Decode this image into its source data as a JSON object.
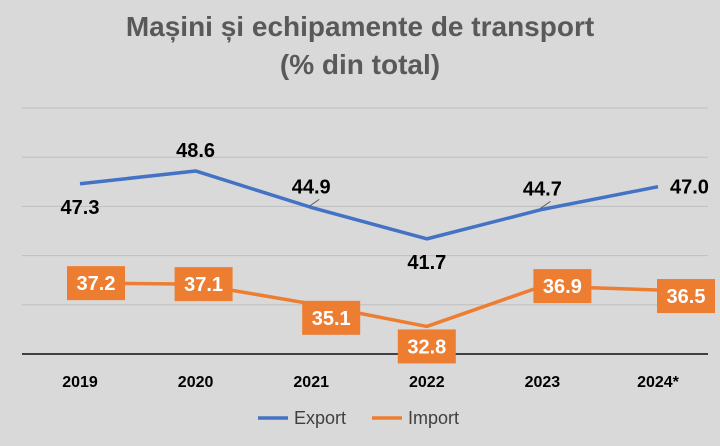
{
  "chart_data": {
    "type": "line",
    "title": "Mașini și echipamente de transport",
    "subtitle": "(% din total)",
    "categories": [
      "2019",
      "2020",
      "2021",
      "2022",
      "2023",
      "2024*"
    ],
    "series": [
      {
        "name": "Export",
        "values": [
          47.3,
          48.6,
          44.9,
          41.7,
          44.7,
          47.0
        ],
        "labels": [
          "47.3",
          "48.6",
          "44.9",
          "41.7",
          "44.7",
          "47.0"
        ],
        "color": "#4472c4"
      },
      {
        "name": "Import",
        "values": [
          37.2,
          37.1,
          35.1,
          32.8,
          36.9,
          36.5
        ],
        "labels": [
          "37.2",
          "37.1",
          "35.1",
          "32.8",
          "36.9",
          "36.5"
        ],
        "color": "#ed7d31"
      }
    ],
    "ylim": [
      30,
      55
    ],
    "grid": true,
    "legend": "bottom",
    "background": "#d9d9d9",
    "gridline_color": "#bfbfbf",
    "axis_color": "#404040"
  }
}
